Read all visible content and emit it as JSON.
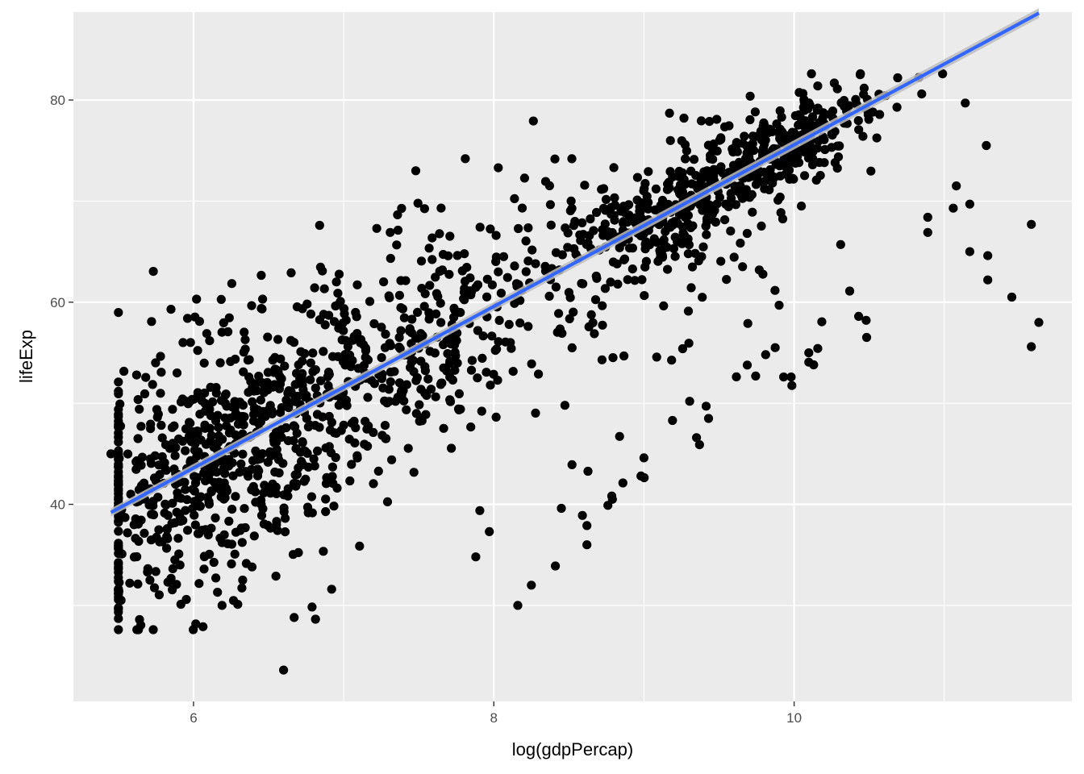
{
  "chart_data": {
    "type": "scatter",
    "title": "",
    "xlabel": "log(gdpPercap)",
    "ylabel": "lifeExp",
    "xlim": [
      5.2,
      11.85
    ],
    "ylim": [
      20.5,
      88.7
    ],
    "x_ticks": [
      6,
      8,
      10
    ],
    "y_ticks": [
      40,
      60,
      80
    ],
    "x_tick_labels": [
      "6",
      "8",
      "10"
    ],
    "y_tick_labels": [
      "40",
      "60",
      "80"
    ],
    "x_minor_ticks": [
      7,
      9,
      11
    ],
    "y_minor_ticks": [
      30,
      50,
      70
    ],
    "grid": true,
    "legend": "none",
    "colors": {
      "panel_background": "#ebebeb",
      "grid": "#ffffff",
      "points": "#000000",
      "fit_line": "#3366ff",
      "confidence_band": "#bdbdbd"
    },
    "fit": {
      "method": "lm",
      "x": [
        5.45,
        11.63
      ],
      "y": [
        39.2,
        88.6
      ],
      "se": true
    },
    "points_described": {
      "n": 1704,
      "x_range": [
        5.45,
        11.63
      ],
      "y_range": [
        23.6,
        82.6
      ],
      "note": ""
    },
    "points_sample": [
      [
        5.45,
        45.0
      ],
      [
        5.63,
        46.5
      ],
      [
        5.67,
        42.1
      ],
      [
        5.71,
        32.5
      ],
      [
        5.74,
        42.6
      ],
      [
        5.79,
        36.3
      ],
      [
        5.83,
        38.9
      ],
      [
        5.85,
        59.3
      ],
      [
        5.86,
        49.4
      ],
      [
        5.88,
        42.0
      ],
      [
        5.89,
        53.0
      ],
      [
        5.91,
        34.0
      ],
      [
        5.93,
        56.0
      ],
      [
        5.96,
        58.4
      ],
      [
        6.02,
        60.3
      ],
      [
        6.04,
        58.1
      ],
      [
        6.03,
        37.1
      ],
      [
        6.07,
        33.6
      ],
      [
        6.16,
        31.3
      ],
      [
        6.19,
        30.0
      ],
      [
        6.6,
        23.6
      ],
      [
        6.67,
        28.8
      ],
      [
        6.84,
        67.6
      ],
      [
        6.92,
        31.6
      ],
      [
        7.22,
        67.3
      ],
      [
        7.31,
        66.9
      ],
      [
        7.48,
        73.0
      ],
      [
        7.81,
        74.2
      ],
      [
        7.88,
        34.8
      ],
      [
        7.97,
        37.3
      ],
      [
        8.03,
        73.3
      ],
      [
        8.16,
        30.0
      ],
      [
        8.25,
        32.0
      ],
      [
        8.41,
        33.9
      ],
      [
        8.45,
        39.6
      ],
      [
        8.59,
        38.9
      ],
      [
        8.62,
        37.9
      ],
      [
        8.62,
        36.0
      ],
      [
        8.76,
        39.9
      ],
      [
        8.79,
        40.5
      ],
      [
        8.98,
        42.8
      ],
      [
        9.0,
        44.6
      ],
      [
        9.17,
        78.7
      ],
      [
        9.35,
        46.6
      ],
      [
        9.37,
        45.9
      ],
      [
        9.43,
        48.5
      ],
      [
        9.9,
        59.7
      ],
      [
        9.93,
        52.6
      ],
      [
        9.98,
        52.6
      ],
      [
        10.13,
        53.8
      ],
      [
        10.31,
        65.7
      ],
      [
        10.37,
        61.1
      ],
      [
        10.43,
        58.6
      ],
      [
        10.44,
        82.5
      ],
      [
        10.69,
        82.2
      ],
      [
        10.85,
        80.6
      ],
      [
        10.89,
        66.9
      ],
      [
        10.89,
        68.4
      ],
      [
        11.06,
        69.3
      ],
      [
        11.08,
        71.5
      ],
      [
        11.14,
        79.7
      ],
      [
        11.17,
        69.7
      ],
      [
        11.17,
        65.0
      ],
      [
        11.28,
        75.5
      ],
      [
        11.29,
        64.6
      ],
      [
        11.29,
        62.2
      ],
      [
        11.45,
        60.5
      ],
      [
        11.58,
        67.7
      ],
      [
        11.58,
        55.6
      ],
      [
        11.63,
        58.0
      ]
    ]
  }
}
